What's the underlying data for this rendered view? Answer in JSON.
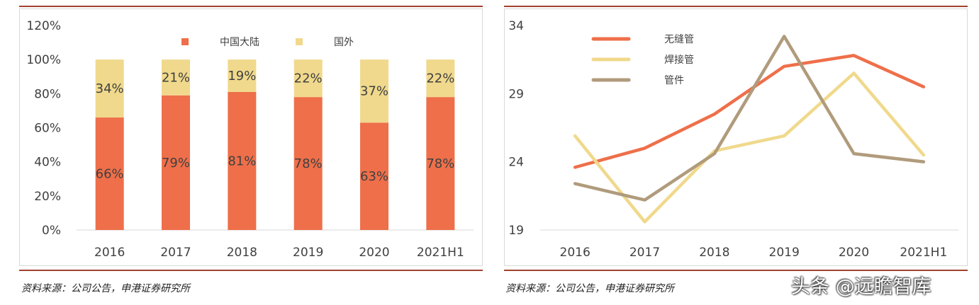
{
  "chart_data": [
    {
      "type": "bar",
      "stacked": true,
      "categories": [
        "2016",
        "2017",
        "2018",
        "2019",
        "2020",
        "2021H1"
      ],
      "series": [
        {
          "name": "中国大陆",
          "values": [
            66,
            79,
            81,
            78,
            63,
            78
          ],
          "labels": [
            "66%",
            "79%",
            "81%",
            "78%",
            "63%",
            "78%"
          ],
          "color": "#ee6f4a"
        },
        {
          "name": "国外",
          "values": [
            34,
            21,
            19,
            22,
            37,
            22
          ],
          "labels": [
            "34%",
            "21%",
            "19%",
            "22%",
            "37%",
            "22%"
          ],
          "color": "#f0d98c"
        }
      ],
      "ylim": [
        0,
        120
      ],
      "yticks": [
        0,
        20,
        40,
        60,
        80,
        100,
        120
      ],
      "ytick_labels": [
        "0%",
        "20%",
        "40%",
        "60%",
        "80%",
        "100%",
        "120%"
      ],
      "legend_position": "top",
      "grid": false
    },
    {
      "type": "line",
      "x": [
        "2016",
        "2017",
        "2018",
        "2019",
        "2020",
        "2021H1"
      ],
      "series": [
        {
          "name": "无缝管",
          "values": [
            23.6,
            25.0,
            27.5,
            31.0,
            31.8,
            29.5
          ],
          "color": "#ee6f4a"
        },
        {
          "name": "焊接管",
          "values": [
            25.9,
            19.6,
            24.8,
            25.9,
            30.5,
            24.5
          ],
          "color": "#f0d98c"
        },
        {
          "name": "管件",
          "values": [
            22.4,
            21.2,
            24.6,
            33.2,
            24.6,
            24.0
          ],
          "color": "#b09b7c"
        }
      ],
      "ylim": [
        19,
        34
      ],
      "yticks": [
        19,
        24,
        29,
        34
      ],
      "ytick_labels": [
        "19",
        "24",
        "29",
        "34"
      ],
      "legend_position": "top-left",
      "grid": false
    }
  ],
  "footer": {
    "left_source": "资料来源：公司公告，申港证券研究所",
    "right_source": "资料来源：公司公告，申港证券研究所",
    "watermark": "头条 @远瞻智库"
  }
}
